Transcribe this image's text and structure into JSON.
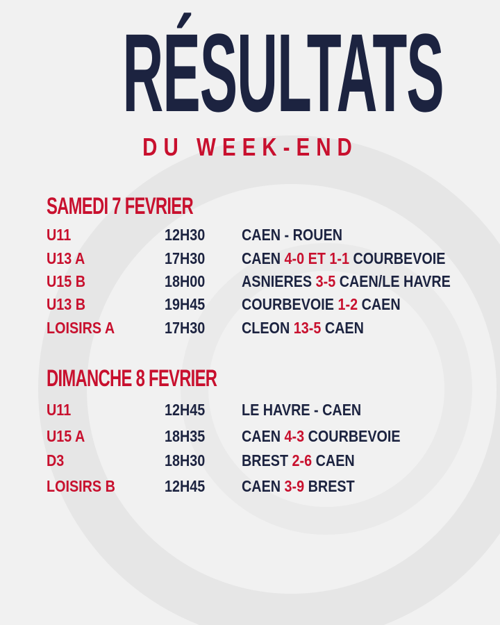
{
  "colors": {
    "navy": "#1c2340",
    "red": "#c8102e",
    "background": "#f1f1f1"
  },
  "title": "RÉSULTATS",
  "subtitle": "DU WEEK-END",
  "sections": [
    {
      "header": "SAMEDI 7 FEVRIER",
      "rows": [
        {
          "category": "U11",
          "time": "12H30",
          "match": [
            {
              "t": "CAEN - ROUEN",
              "s": false
            }
          ]
        },
        {
          "category": "U13 A",
          "time": "17H30",
          "match": [
            {
              "t": "CAEN ",
              "s": false
            },
            {
              "t": "4-0 ET 1-1",
              "s": true
            },
            {
              "t": " COURBEVOIE",
              "s": false
            }
          ]
        },
        {
          "category": "U15 B",
          "time": "18H00",
          "match": [
            {
              "t": "ASNIERES ",
              "s": false
            },
            {
              "t": "3-5",
              "s": true
            },
            {
              "t": " CAEN/LE HAVRE",
              "s": false
            }
          ]
        },
        {
          "category": "U13 B",
          "time": "19H45",
          "match": [
            {
              "t": "COURBEVOIE ",
              "s": false
            },
            {
              "t": "1-2",
              "s": true
            },
            {
              "t": " CAEN",
              "s": false
            }
          ]
        },
        {
          "category": "LOISIRS A",
          "time": "17H30",
          "match": [
            {
              "t": "CLEON ",
              "s": false
            },
            {
              "t": "13-5",
              "s": true
            },
            {
              "t": " CAEN",
              "s": false
            }
          ]
        }
      ]
    },
    {
      "header": "DIMANCHE 8 FEVRIER",
      "rows": [
        {
          "category": "U11",
          "time": "12H45",
          "match": [
            {
              "t": "LE HAVRE - CAEN",
              "s": false
            }
          ]
        },
        {
          "category": "U15 A",
          "time": "18H35",
          "match": [
            {
              "t": "CAEN ",
              "s": false
            },
            {
              "t": "4-3",
              "s": true
            },
            {
              "t": " COURBEVOIE",
              "s": false
            }
          ]
        },
        {
          "category": "D3",
          "time": "18H30",
          "match": [
            {
              "t": "BREST ",
              "s": false
            },
            {
              "t": "2-6",
              "s": true
            },
            {
              "t": " CAEN",
              "s": false
            }
          ]
        },
        {
          "category": "LOISIRS B",
          "time": "12H45",
          "match": [
            {
              "t": "CAEN ",
              "s": false
            },
            {
              "t": "3-9",
              "s": true
            },
            {
              "t": " BREST",
              "s": false
            }
          ]
        }
      ]
    }
  ]
}
